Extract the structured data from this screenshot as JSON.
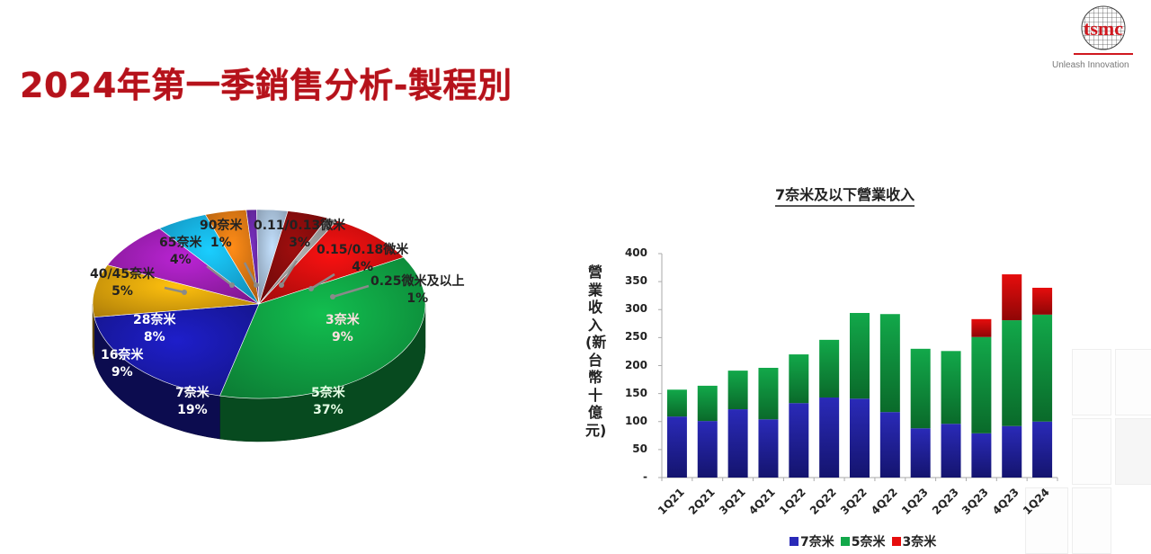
{
  "header": {
    "title": "2024年第一季銷售分析-製程別",
    "logo_text": "tsmc",
    "logo_tagline": "Unleash Innovation"
  },
  "colors": {
    "title_red": "#b5121b",
    "n7_blue": "#2a2ab8",
    "n5_green": "#12a84a",
    "n3_red": "#e60d0d"
  },
  "pie": {
    "slices": [
      {
        "name": "3奈米",
        "label": "3奈米",
        "pct": "9%",
        "value": 9,
        "color": "#d90f0f"
      },
      {
        "name": "5奈米",
        "label": "5奈米",
        "pct": "37%",
        "value": 37,
        "color": "#10a545"
      },
      {
        "name": "7奈米",
        "label": "7奈米",
        "pct": "19%",
        "value": 19,
        "color": "#1a1ab0"
      },
      {
        "name": "16奈米",
        "label": "16奈米",
        "pct": "9%",
        "value": 9,
        "color": "#e8a80c"
      },
      {
        "name": "28奈米",
        "label": "28奈米",
        "pct": "8%",
        "value": 8,
        "color": "#a21fb8"
      },
      {
        "name": "40/45奈米",
        "label": "40/45奈米",
        "pct": "5%",
        "value": 5,
        "color": "#17b3ea"
      },
      {
        "name": "65奈米",
        "label": "65奈米",
        "pct": "4%",
        "value": 4,
        "color": "#e27a14"
      },
      {
        "name": "90奈米",
        "label": "90奈米",
        "pct": "1%",
        "value": 1,
        "color": "#6a2aa8"
      },
      {
        "name": "0.11/0.13微米",
        "label": "0.11/0.13微米",
        "pct": "3%",
        "value": 3,
        "color": "#aac3dc"
      },
      {
        "name": "0.15/0.18微米",
        "label": "0.15/0.18微米",
        "pct": "4%",
        "value": 4,
        "color": "#8a0c0c"
      },
      {
        "name": "0.25微米及以上",
        "label": "0.25微米及以上",
        "pct": "1%",
        "value": 1,
        "color": "#9a9a9a"
      }
    ]
  },
  "bar": {
    "title": "7奈米及以下營業收入",
    "ylabel": "營業收入(新台幣十億元)",
    "yticks": [
      "400",
      "350",
      "300",
      "250",
      "200",
      "150",
      "100",
      "50",
      "-"
    ],
    "legend": [
      "7奈米",
      "5奈米",
      "3奈米"
    ]
  },
  "chart_data": [
    {
      "type": "pie",
      "title": "2024年第一季銷售分析-製程別",
      "categories": [
        "3奈米",
        "5奈米",
        "7奈米",
        "16奈米",
        "28奈米",
        "40/45奈米",
        "65奈米",
        "90奈米",
        "0.11/0.13微米",
        "0.15/0.18微米",
        "0.25微米及以上"
      ],
      "values": [
        9,
        37,
        19,
        9,
        8,
        5,
        4,
        1,
        3,
        4,
        1
      ],
      "unit": "%"
    },
    {
      "type": "bar",
      "stacked": true,
      "title": "7奈米及以下營業收入",
      "xlabel": "",
      "ylabel": "營業收入(新台幣十億元)",
      "ylim": [
        0,
        400
      ],
      "yticks": [
        0,
        50,
        100,
        150,
        200,
        250,
        300,
        350,
        400
      ],
      "categories": [
        "1Q21",
        "2Q21",
        "3Q21",
        "4Q21",
        "1Q22",
        "2Q22",
        "3Q22",
        "4Q22",
        "1Q23",
        "2Q23",
        "3Q23",
        "4Q23",
        "1Q24"
      ],
      "series": [
        {
          "name": "7奈米",
          "color": "#2a2ab8",
          "values": [
            109,
            101,
            122,
            104,
            133,
            143,
            141,
            117,
            88,
            96,
            79,
            92,
            100
          ]
        },
        {
          "name": "5奈米",
          "color": "#12a84a",
          "values": [
            48,
            63,
            69,
            92,
            87,
            103,
            153,
            175,
            142,
            130,
            172,
            189,
            191
          ]
        },
        {
          "name": "3奈米",
          "color": "#e60d0d",
          "values": [
            0,
            0,
            0,
            0,
            0,
            0,
            0,
            0,
            0,
            0,
            32,
            82,
            48
          ]
        }
      ],
      "legend_position": "bottom",
      "grid": false
    }
  ]
}
